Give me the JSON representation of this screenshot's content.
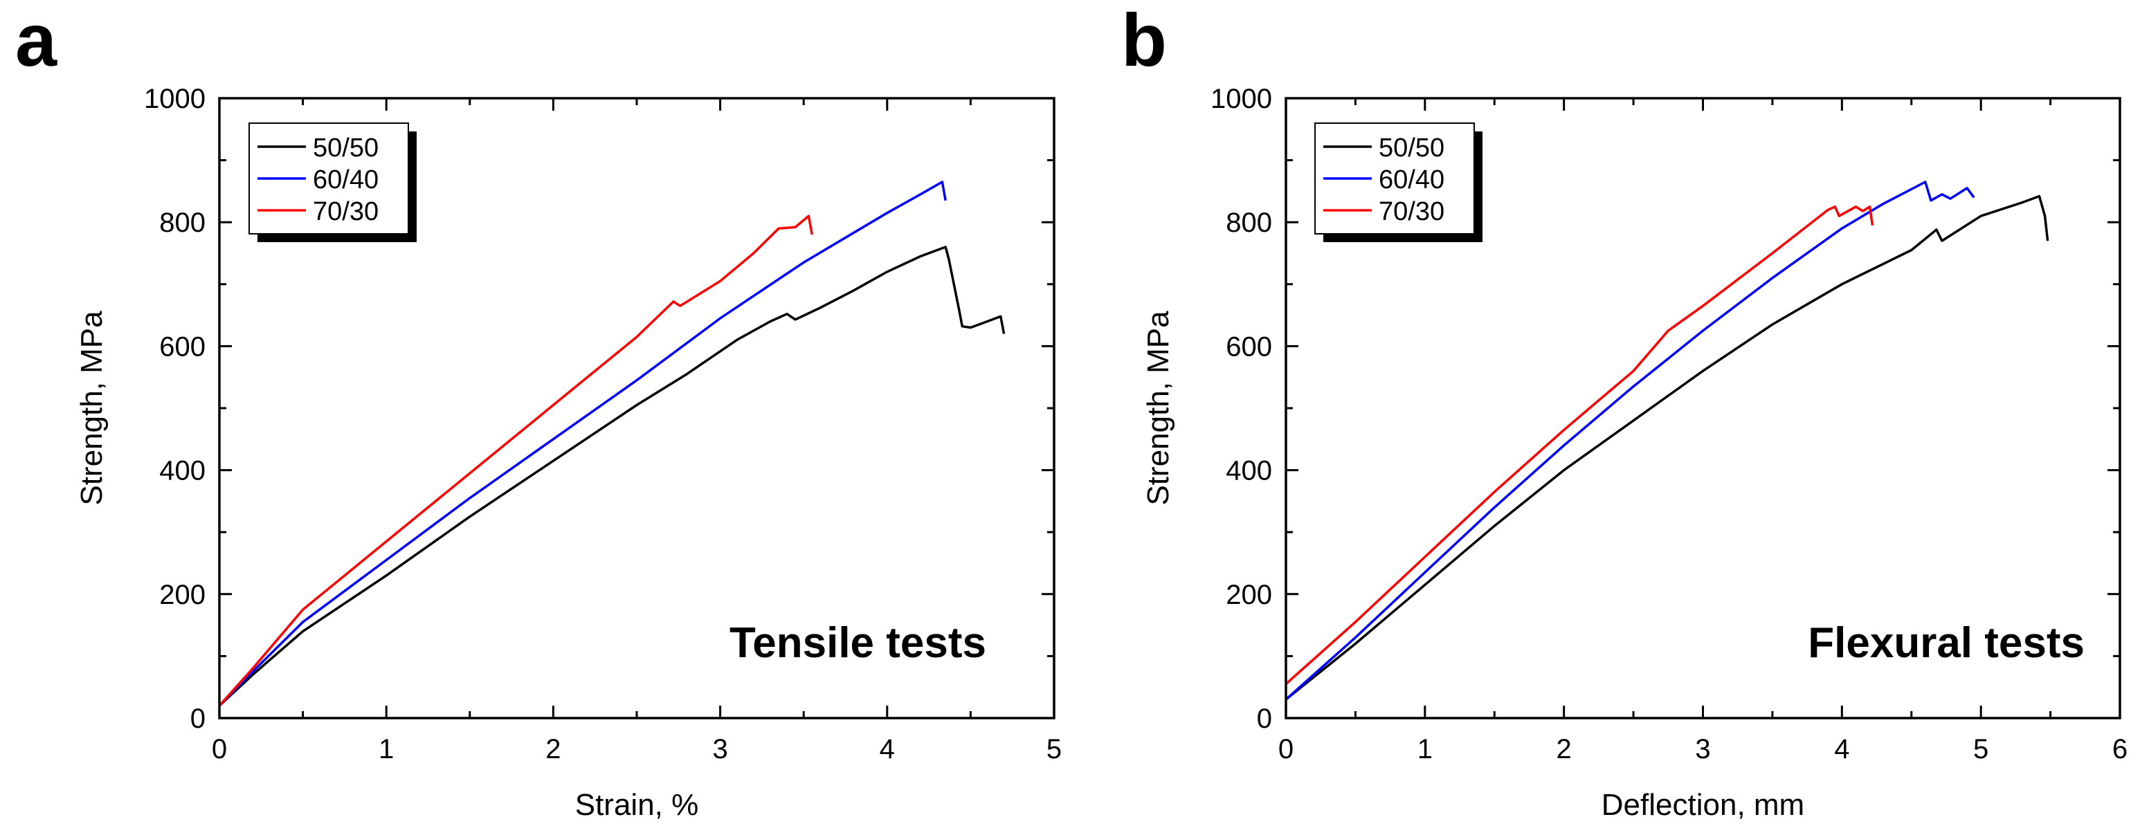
{
  "chart_data": [
    {
      "type": "line",
      "panel_label": "a",
      "annotation": "Tensile tests",
      "xlabel": "Strain, %",
      "ylabel": "Strength, MPa",
      "xlim": [
        0,
        5
      ],
      "ylim": [
        0,
        1000
      ],
      "xticks": [
        0,
        1,
        2,
        3,
        4,
        5
      ],
      "yticks": [
        0,
        200,
        400,
        600,
        800,
        1000
      ],
      "legend_position": "top-left",
      "series": [
        {
          "name": "50/50",
          "color": "#000000",
          "points": [
            [
              0,
              20
            ],
            [
              0.2,
              70
            ],
            [
              0.5,
              140
            ],
            [
              1,
              230
            ],
            [
              1.5,
              325
            ],
            [
              2,
              415
            ],
            [
              2.5,
              505
            ],
            [
              2.8,
              555
            ],
            [
              3.1,
              610
            ],
            [
              3.3,
              640
            ],
            [
              3.4,
              652
            ],
            [
              3.45,
              643
            ],
            [
              3.6,
              662
            ],
            [
              3.8,
              690
            ],
            [
              4.0,
              720
            ],
            [
              4.2,
              745
            ],
            [
              4.35,
              760
            ],
            [
              4.37,
              740
            ],
            [
              4.43,
              660
            ],
            [
              4.45,
              632
            ],
            [
              4.5,
              630
            ],
            [
              4.6,
              640
            ],
            [
              4.68,
              648
            ],
            [
              4.7,
              620
            ]
          ]
        },
        {
          "name": "60/40",
          "color": "#0000ff",
          "points": [
            [
              0,
              20
            ],
            [
              0.2,
              75
            ],
            [
              0.5,
              155
            ],
            [
              1,
              255
            ],
            [
              1.5,
              355
            ],
            [
              2,
              450
            ],
            [
              2.5,
              545
            ],
            [
              3,
              645
            ],
            [
              3.5,
              735
            ],
            [
              4,
              815
            ],
            [
              4.2,
              845
            ],
            [
              4.33,
              865
            ],
            [
              4.35,
              835
            ]
          ]
        },
        {
          "name": "70/30",
          "color": "#ff0000",
          "points": [
            [
              0,
              20
            ],
            [
              0.2,
              80
            ],
            [
              0.5,
              175
            ],
            [
              1,
              285
            ],
            [
              1.5,
              395
            ],
            [
              2,
              505
            ],
            [
              2.5,
              615
            ],
            [
              2.72,
              672
            ],
            [
              2.76,
              665
            ],
            [
              3.0,
              705
            ],
            [
              3.2,
              750
            ],
            [
              3.35,
              790
            ],
            [
              3.45,
              792
            ],
            [
              3.53,
              810
            ],
            [
              3.55,
              780
            ]
          ]
        }
      ]
    },
    {
      "type": "line",
      "panel_label": "b",
      "annotation": "Flexural tests",
      "xlabel": "Deflection, mm",
      "ylabel": "Strength, MPa",
      "xlim": [
        0,
        6
      ],
      "ylim": [
        0,
        1000
      ],
      "xticks": [
        0,
        1,
        2,
        3,
        4,
        5,
        6
      ],
      "yticks": [
        0,
        200,
        400,
        600,
        800,
        1000
      ],
      "legend_position": "top-left",
      "series": [
        {
          "name": "50/50",
          "color": "#000000",
          "points": [
            [
              0,
              30
            ],
            [
              0.5,
              120
            ],
            [
              1,
              215
            ],
            [
              1.5,
              310
            ],
            [
              2,
              400
            ],
            [
              2.5,
              480
            ],
            [
              3,
              560
            ],
            [
              3.5,
              635
            ],
            [
              4,
              700
            ],
            [
              4.5,
              755
            ],
            [
              4.68,
              788
            ],
            [
              4.72,
              770
            ],
            [
              5.0,
              810
            ],
            [
              5.3,
              832
            ],
            [
              5.42,
              842
            ],
            [
              5.46,
              810
            ],
            [
              5.48,
              770
            ]
          ]
        },
        {
          "name": "60/40",
          "color": "#0000ff",
          "points": [
            [
              0,
              30
            ],
            [
              0.5,
              130
            ],
            [
              1,
              235
            ],
            [
              1.5,
              340
            ],
            [
              2,
              440
            ],
            [
              2.5,
              535
            ],
            [
              3,
              625
            ],
            [
              3.5,
              710
            ],
            [
              4,
              790
            ],
            [
              4.3,
              830
            ],
            [
              4.6,
              865
            ],
            [
              4.64,
              835
            ],
            [
              4.72,
              845
            ],
            [
              4.78,
              838
            ],
            [
              4.9,
              855
            ],
            [
              4.95,
              840
            ]
          ]
        },
        {
          "name": "70/30",
          "color": "#ff0000",
          "points": [
            [
              0,
              55
            ],
            [
              0.5,
              155
            ],
            [
              1,
              260
            ],
            [
              1.5,
              365
            ],
            [
              2,
              465
            ],
            [
              2.5,
              560
            ],
            [
              2.75,
              625
            ],
            [
              3,
              665
            ],
            [
              3.5,
              750
            ],
            [
              3.9,
              820
            ],
            [
              3.95,
              825
            ],
            [
              3.98,
              810
            ],
            [
              4.1,
              825
            ],
            [
              4.15,
              818
            ],
            [
              4.2,
              825
            ],
            [
              4.22,
              795
            ]
          ]
        }
      ]
    }
  ]
}
